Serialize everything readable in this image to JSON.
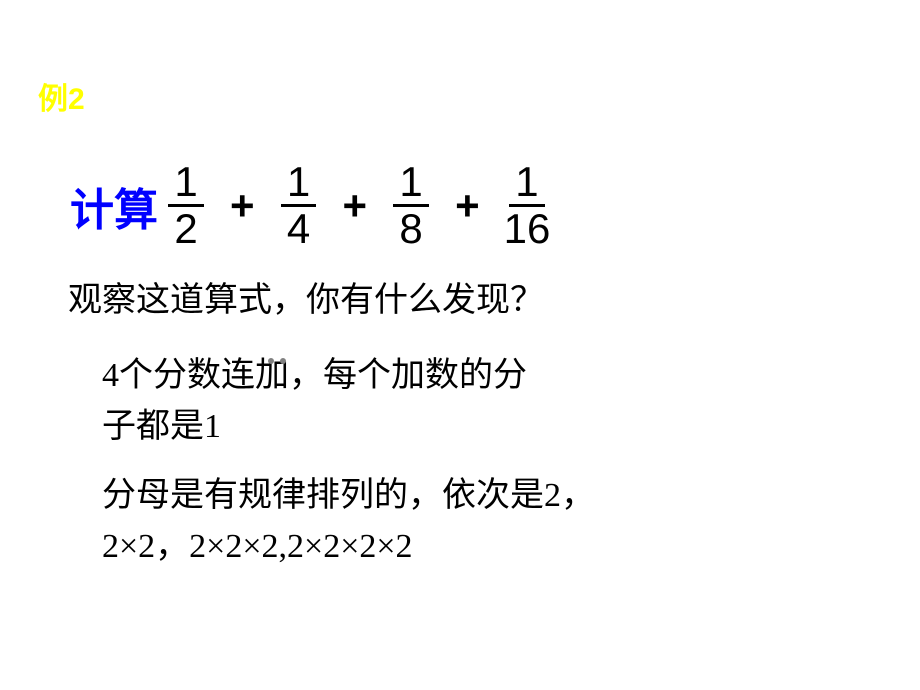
{
  "header": {
    "text": "例2",
    "color": "#ffff00"
  },
  "equation": {
    "label": "计算",
    "label_color": "#0000ff",
    "terms": [
      {
        "num": "1",
        "den": "2"
      },
      {
        "num": "1",
        "den": "4"
      },
      {
        "num": "1",
        "den": "8"
      },
      {
        "num": "1",
        "den": "16"
      }
    ],
    "operator": "+"
  },
  "body": {
    "line1": "观察这道算式，你有什么发现？",
    "line2a": "4个分数连加，每个加数的分",
    "line2b": "子都是1",
    "line3a": "分母是有规律排列的，依次是2，",
    "line3b": "2×2，2×2×2,2×2×2×2"
  },
  "colors": {
    "text": "#000000",
    "background": "#ffffff"
  }
}
